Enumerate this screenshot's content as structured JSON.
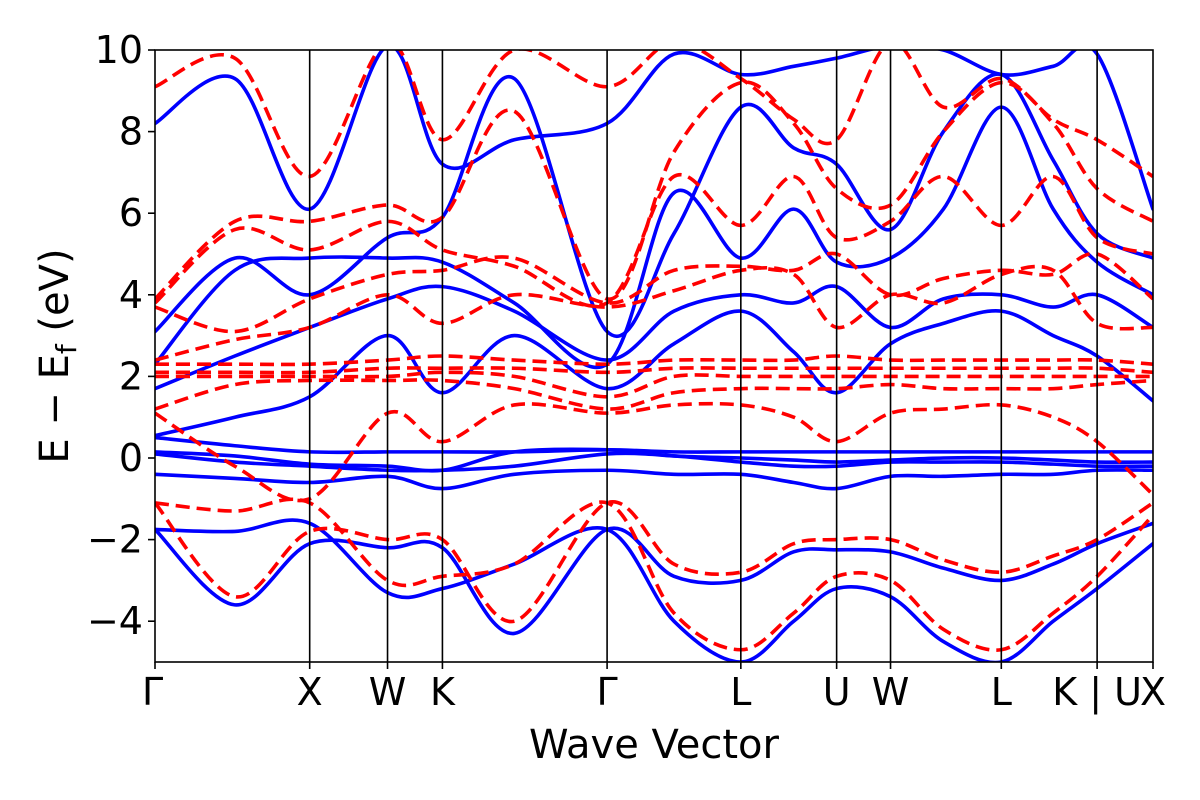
{
  "chart_data": {
    "type": "line",
    "title": "",
    "xlabel": "Wave Vector",
    "ylabel": {
      "main": "E − E",
      "sub": "f",
      "unit": " (eV)"
    },
    "ylim": [
      -5,
      10
    ],
    "yticks": [
      -4,
      -2,
      0,
      2,
      4,
      6,
      8,
      10
    ],
    "ytick_labels": [
      "−4",
      "−2",
      "0",
      "2",
      "4",
      "6",
      "8",
      "10"
    ],
    "xlim": [
      0,
      1
    ],
    "kpoints": [
      {
        "label": "Γ",
        "x": 0.0
      },
      {
        "label": "X",
        "x": 0.155
      },
      {
        "label": "W",
        "x": 0.233
      },
      {
        "label": "K",
        "x": 0.288
      },
      {
        "label": "Γ",
        "x": 0.453
      },
      {
        "label": "L",
        "x": 0.587
      },
      {
        "label": "U",
        "x": 0.683
      },
      {
        "label": "W",
        "x": 0.737
      },
      {
        "label": "L",
        "x": 0.848
      },
      {
        "label": "K | U",
        "x": 0.944
      },
      {
        "label": "X",
        "x": 1.0
      }
    ],
    "grid": false,
    "series": [
      {
        "style": "solid",
        "color": "#0000ff",
        "bands": [
          {
            "x": [
              0,
              0.08,
              0.155,
              0.233,
              0.288,
              0.36,
              0.453,
              0.52,
              0.587,
              0.64,
              0.683,
              0.737,
              0.79,
              0.848,
              0.9,
              0.944,
              1.0
            ],
            "y": [
              -1.75,
              -3.6,
              -2.1,
              -2.2,
              -2.2,
              -4.3,
              -1.75,
              -2.9,
              -3.0,
              -2.3,
              -2.25,
              -2.3,
              -2.7,
              -3.0,
              -2.6,
              -2.1,
              -1.6
            ]
          },
          {
            "x": [
              0,
              0.08,
              0.155,
              0.233,
              0.288,
              0.36,
              0.453,
              0.52,
              0.587,
              0.64,
              0.683,
              0.737,
              0.79,
              0.848,
              0.9,
              0.944,
              1.0
            ],
            "y": [
              -1.75,
              -1.8,
              -1.6,
              -3.3,
              -3.2,
              -2.6,
              -1.75,
              -4.0,
              -5.0,
              -4.0,
              -3.2,
              -3.4,
              -4.5,
              -5.0,
              -4.0,
              -3.2,
              -2.1
            ]
          },
          {
            "x": [
              0,
              0.08,
              0.155,
              0.233,
              0.288,
              0.36,
              0.453,
              0.52,
              0.587,
              0.64,
              0.683,
              0.737,
              0.79,
              0.848,
              0.9,
              0.944,
              1.0
            ],
            "y": [
              -0.4,
              -0.5,
              -0.6,
              -0.45,
              -0.75,
              -0.4,
              -0.3,
              -0.4,
              -0.4,
              -0.6,
              -0.75,
              -0.45,
              -0.45,
              -0.4,
              -0.4,
              -0.3,
              -0.3
            ]
          },
          {
            "x": [
              0,
              0.08,
              0.155,
              0.233,
              0.288,
              0.36,
              0.453,
              0.52,
              0.587,
              0.64,
              0.683,
              0.737,
              0.79,
              0.848,
              0.9,
              0.944,
              1.0
            ],
            "y": [
              0.1,
              -0.1,
              -0.2,
              -0.3,
              -0.3,
              -0.2,
              0.1,
              0.05,
              -0.1,
              -0.2,
              -0.2,
              -0.1,
              -0.1,
              -0.1,
              -0.15,
              -0.2,
              -0.2
            ]
          },
          {
            "x": [
              0,
              0.08,
              0.155,
              0.233,
              0.288,
              0.36,
              0.453,
              0.52,
              0.587,
              0.64,
              0.683,
              0.737,
              0.79,
              0.848,
              0.9,
              0.944,
              1.0
            ],
            "y": [
              0.15,
              0.05,
              -0.15,
              -0.2,
              -0.3,
              0.15,
              0.2,
              0.05,
              0.0,
              -0.05,
              -0.1,
              -0.05,
              0.0,
              0.0,
              -0.05,
              -0.1,
              -0.1
            ]
          },
          {
            "x": [
              0,
              0.08,
              0.155,
              0.233,
              0.288,
              0.36,
              0.453,
              0.52,
              0.587,
              0.64,
              0.683,
              0.737,
              0.79,
              0.848,
              0.9,
              0.944,
              1.0
            ],
            "y": [
              0.5,
              0.3,
              0.15,
              0.15,
              0.15,
              0.15,
              0.2,
              0.15,
              0.15,
              0.15,
              0.15,
              0.15,
              0.15,
              0.15,
              0.15,
              0.15,
              0.15
            ]
          },
          {
            "x": [
              0,
              0.08,
              0.155,
              0.233,
              0.288,
              0.36,
              0.453,
              0.52,
              0.587,
              0.64,
              0.683,
              0.737,
              0.79,
              0.848,
              0.9,
              0.944,
              1.0
            ],
            "y": [
              0.55,
              1.0,
              1.5,
              3.0,
              1.6,
              3.0,
              1.7,
              2.8,
              3.6,
              2.6,
              1.6,
              2.8,
              3.3,
              3.6,
              3.0,
              2.5,
              1.4
            ]
          },
          {
            "x": [
              0,
              0.08,
              0.155,
              0.233,
              0.288,
              0.36,
              0.453,
              0.52,
              0.587,
              0.64,
              0.683,
              0.737,
              0.79,
              0.848,
              0.9,
              0.944,
              1.0
            ],
            "y": [
              1.7,
              2.5,
              3.2,
              3.9,
              4.2,
              3.6,
              2.4,
              3.6,
              4.0,
              3.8,
              4.2,
              3.2,
              3.9,
              4.0,
              3.7,
              4.0,
              3.2
            ]
          },
          {
            "x": [
              0,
              0.08,
              0.155,
              0.233,
              0.288,
              0.36,
              0.453,
              0.52,
              0.587,
              0.64,
              0.683,
              0.737,
              0.79,
              0.848,
              0.9,
              0.944,
              1.0
            ],
            "y": [
              2.3,
              4.6,
              4.9,
              4.9,
              4.8,
              3.8,
              2.3,
              6.5,
              4.9,
              6.1,
              4.8,
              4.9,
              6.1,
              8.6,
              6.1,
              4.8,
              4.0
            ]
          },
          {
            "x": [
              0,
              0.08,
              0.155,
              0.233,
              0.288,
              0.36,
              0.453,
              0.52,
              0.587,
              0.64,
              0.683,
              0.737,
              0.79,
              0.848,
              0.9,
              0.944,
              1.0
            ],
            "y": [
              3.1,
              4.9,
              4.0,
              5.4,
              5.9,
              9.3,
              3.1,
              5.5,
              8.6,
              7.6,
              7.2,
              5.6,
              8.0,
              9.4,
              7.3,
              5.5,
              4.9
            ]
          },
          {
            "x": [
              0,
              0.08,
              0.155,
              0.233,
              0.288,
              0.36,
              0.453,
              0.52,
              0.587,
              0.64,
              0.683,
              0.737,
              0.79,
              0.848,
              0.9,
              0.944,
              1.0
            ],
            "y": [
              8.2,
              9.3,
              6.1,
              10.1,
              7.2,
              7.8,
              8.2,
              9.9,
              9.4,
              9.6,
              9.8,
              10.1,
              10.0,
              9.4,
              9.6,
              9.9,
              6.1
            ]
          }
        ]
      },
      {
        "style": "dashed",
        "color": "#ff0000",
        "bands": [
          {
            "x": [
              0,
              0.08,
              0.155,
              0.233,
              0.288,
              0.36,
              0.453,
              0.52,
              0.587,
              0.64,
              0.683,
              0.737,
              0.79,
              0.848,
              0.9,
              0.944,
              1.0
            ],
            "y": [
              -1.1,
              -3.4,
              -1.8,
              -2.0,
              -2.0,
              -4.0,
              -1.1,
              -2.6,
              -2.8,
              -2.1,
              -2.0,
              -2.0,
              -2.5,
              -2.8,
              -2.4,
              -2.0,
              -1.1
            ]
          },
          {
            "x": [
              0,
              0.08,
              0.155,
              0.233,
              0.288,
              0.36,
              0.453,
              0.52,
              0.587,
              0.64,
              0.683,
              0.737,
              0.79,
              0.848,
              0.9,
              0.944,
              1.0
            ],
            "y": [
              -1.1,
              -1.3,
              -1.1,
              -3.0,
              -2.9,
              -2.6,
              -1.1,
              -3.8,
              -4.7,
              -3.8,
              -2.9,
              -3.0,
              -4.2,
              -4.7,
              -3.8,
              -2.9,
              -1.4
            ]
          },
          {
            "x": [
              0,
              0.08,
              0.155,
              0.233,
              0.288,
              0.36,
              0.453,
              0.52,
              0.587,
              0.64,
              0.683,
              0.737,
              0.79,
              0.848,
              0.9,
              0.944,
              1.0
            ],
            "y": [
              1.1,
              -0.2,
              -1.0,
              1.1,
              0.4,
              1.3,
              1.1,
              1.3,
              1.3,
              1.0,
              0.4,
              1.1,
              1.2,
              1.3,
              1.0,
              0.4,
              -0.9
            ]
          },
          {
            "x": [
              0,
              0.08,
              0.155,
              0.233,
              0.288,
              0.36,
              0.453,
              0.52,
              0.587,
              0.64,
              0.683,
              0.737,
              0.79,
              0.848,
              0.9,
              0.944,
              1.0
            ],
            "y": [
              1.2,
              1.8,
              1.9,
              1.9,
              1.9,
              1.7,
              1.2,
              1.6,
              1.7,
              1.7,
              1.7,
              1.8,
              1.7,
              1.7,
              1.7,
              1.8,
              1.9
            ]
          },
          {
            "x": [
              0,
              0.08,
              0.155,
              0.233,
              0.288,
              0.36,
              0.453,
              0.52,
              0.587,
              0.64,
              0.683,
              0.737,
              0.79,
              0.848,
              0.9,
              0.944,
              1.0
            ],
            "y": [
              2.0,
              2.0,
              2.0,
              2.0,
              2.1,
              2.0,
              1.5,
              2.0,
              2.0,
              2.0,
              2.0,
              2.0,
              2.0,
              2.0,
              2.0,
              2.0,
              2.0
            ]
          },
          {
            "x": [
              0,
              0.08,
              0.155,
              0.233,
              0.288,
              0.36,
              0.453,
              0.52,
              0.587,
              0.64,
              0.683,
              0.737,
              0.79,
              0.848,
              0.9,
              0.944,
              1.0
            ],
            "y": [
              2.1,
              2.1,
              2.1,
              2.2,
              2.2,
              2.2,
              2.1,
              2.2,
              2.2,
              2.2,
              2.2,
              2.2,
              2.2,
              2.2,
              2.2,
              2.2,
              2.1
            ]
          },
          {
            "x": [
              0,
              0.08,
              0.155,
              0.233,
              0.288,
              0.36,
              0.453,
              0.52,
              0.587,
              0.64,
              0.683,
              0.737,
              0.79,
              0.848,
              0.9,
              0.944,
              1.0
            ],
            "y": [
              2.3,
              2.3,
              2.3,
              2.4,
              2.5,
              2.4,
              2.3,
              2.4,
              2.4,
              2.4,
              2.5,
              2.4,
              2.4,
              2.4,
              2.4,
              2.4,
              2.3
            ]
          },
          {
            "x": [
              0,
              0.08,
              0.155,
              0.233,
              0.288,
              0.36,
              0.453,
              0.52,
              0.587,
              0.64,
              0.683,
              0.737,
              0.79,
              0.848,
              0.9,
              0.944,
              1.0
            ],
            "y": [
              2.4,
              2.9,
              3.2,
              4.0,
              3.3,
              4.0,
              3.7,
              4.1,
              4.6,
              4.5,
              3.2,
              4.0,
              3.8,
              4.5,
              4.6,
              3.3,
              3.2
            ]
          },
          {
            "x": [
              0,
              0.08,
              0.155,
              0.233,
              0.288,
              0.36,
              0.453,
              0.52,
              0.587,
              0.64,
              0.683,
              0.737,
              0.79,
              0.848,
              0.9,
              0.944,
              1.0
            ],
            "y": [
              3.7,
              3.1,
              3.9,
              4.5,
              4.6,
              4.9,
              3.8,
              4.6,
              4.7,
              4.6,
              5.0,
              4.0,
              4.4,
              4.6,
              4.5,
              5.0,
              3.9
            ]
          },
          {
            "x": [
              0,
              0.08,
              0.155,
              0.233,
              0.288,
              0.36,
              0.453,
              0.52,
              0.587,
              0.64,
              0.683,
              0.737,
              0.79,
              0.848,
              0.9,
              0.944,
              1.0
            ],
            "y": [
              3.8,
              5.6,
              5.1,
              5.8,
              5.1,
              4.7,
              3.8,
              6.9,
              5.7,
              6.9,
              5.4,
              5.8,
              6.9,
              5.7,
              6.9,
              5.4,
              5.0
            ]
          },
          {
            "x": [
              0,
              0.08,
              0.155,
              0.233,
              0.288,
              0.36,
              0.453,
              0.52,
              0.587,
              0.64,
              0.683,
              0.737,
              0.79,
              0.848,
              0.9,
              0.944,
              1.0
            ],
            "y": [
              3.9,
              5.8,
              5.8,
              6.2,
              5.9,
              8.5,
              3.9,
              7.5,
              9.2,
              8.2,
              6.6,
              6.2,
              8.0,
              9.2,
              8.2,
              6.6,
              5.8
            ]
          },
          {
            "x": [
              0,
              0.08,
              0.155,
              0.233,
              0.288,
              0.36,
              0.453,
              0.52,
              0.587,
              0.64,
              0.683,
              0.737,
              0.79,
              0.848,
              0.9,
              0.944,
              1.0
            ],
            "y": [
              9.1,
              9.8,
              6.9,
              10.2,
              7.8,
              10.0,
              9.1,
              10.2,
              9.3,
              8.3,
              7.8,
              10.2,
              8.6,
              9.3,
              8.3,
              7.8,
              6.9
            ]
          }
        ]
      }
    ]
  }
}
